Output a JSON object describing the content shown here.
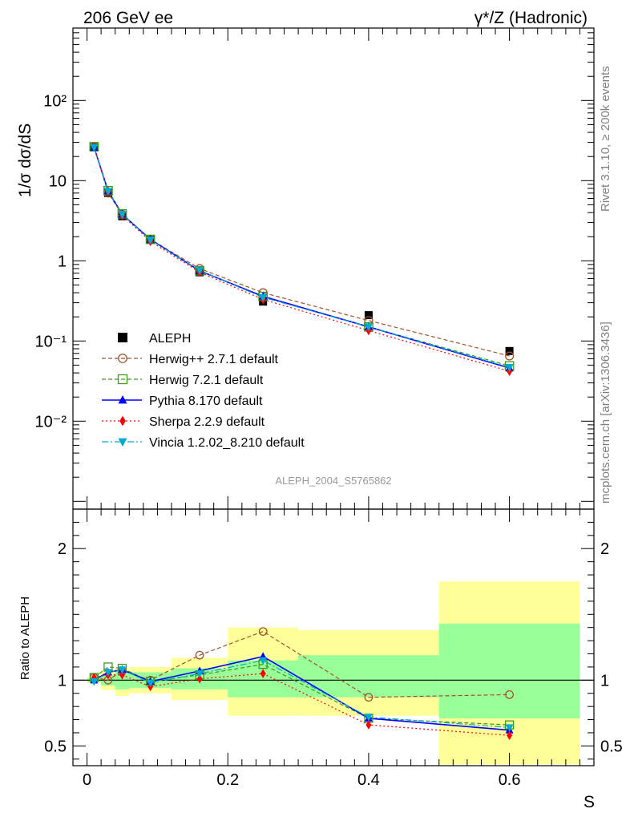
{
  "header": {
    "left": "206 GeV ee",
    "right": "γ*/Z (Hadronic)"
  },
  "side_text": {
    "rivet": "Rivet 3.1.10, ≥ 200k events",
    "mcplots": "mcplots.cern.ch [arXiv:1306.3436]"
  },
  "chart_data": [
    {
      "type": "line",
      "panel": "main",
      "yscale": "log",
      "ylabel": "1/σ  dσ/dS",
      "xlabel": "S",
      "xlim": [
        -0.02,
        0.72
      ],
      "ylim": [
        0.0008,
        800
      ],
      "ytick_labels": [
        "10⁻²",
        "10⁻¹",
        "1",
        "10",
        "10²"
      ],
      "ytick_values": [
        0.01,
        0.1,
        1,
        10,
        100
      ],
      "analysis_label": "ALEPH_2004_S5765862",
      "x": [
        0.01,
        0.03,
        0.05,
        0.09,
        0.16,
        0.25,
        0.4,
        0.6
      ],
      "data": {
        "name": "ALEPH",
        "values": [
          26.0,
          7.0,
          3.6,
          1.85,
          0.72,
          0.31,
          0.21,
          0.075
        ]
      },
      "series": [
        {
          "name": "Herwig++ 2.7.1 default",
          "color": "#a0522d",
          "marker": "circle-open",
          "dash": "5,3",
          "values": [
            26.5,
            7.0,
            3.8,
            1.85,
            0.8,
            0.4,
            0.18,
            0.065
          ]
        },
        {
          "name": "Herwig 7.2.1 default",
          "color": "#3c9a1e",
          "marker": "square-open",
          "dash": "5,3",
          "values": [
            26.5,
            7.5,
            3.85,
            1.85,
            0.75,
            0.36,
            0.15,
            0.049
          ]
        },
        {
          "name": "Pythia 8.170 default",
          "color": "#0000ff",
          "marker": "triangle-up",
          "dash": "",
          "values": [
            26.0,
            7.4,
            3.8,
            1.85,
            0.75,
            0.36,
            0.15,
            0.046
          ]
        },
        {
          "name": "Sherpa 2.2.9 default",
          "color": "#ff0000",
          "marker": "diamond",
          "dash": "2,3",
          "values": [
            26.5,
            7.3,
            3.7,
            1.75,
            0.72,
            0.33,
            0.135,
            0.042
          ]
        },
        {
          "name": "Vincia 1.2.02_8.210 default",
          "color": "#00aacc",
          "marker": "triangle-down",
          "dash": "8,3,2,3",
          "values": [
            26.0,
            7.4,
            3.8,
            1.82,
            0.76,
            0.35,
            0.15,
            0.047
          ]
        }
      ]
    },
    {
      "type": "line",
      "panel": "ratio",
      "ylabel": "Ratio to ALEPH",
      "xlabel": "S",
      "xlim": [
        -0.02,
        0.72
      ],
      "ylim": [
        0.35,
        2.3
      ],
      "ytick_labels": [
        "0.5",
        "1",
        "2"
      ],
      "ytick_values": [
        0.5,
        1,
        2
      ],
      "xtick_labels": [
        "0",
        "0.2",
        "0.4",
        "0.6"
      ],
      "xtick_values": [
        0,
        0.2,
        0.4,
        0.6
      ],
      "bands": [
        {
          "x0": 0.0,
          "x1": 0.02,
          "inner": [
            0.985,
            1.015
          ],
          "outer": [
            0.975,
            1.025
          ]
        },
        {
          "x0": 0.02,
          "x1": 0.04,
          "inner": [
            0.96,
            1.04
          ],
          "outer": [
            0.925,
            1.075
          ]
        },
        {
          "x0": 0.04,
          "x1": 0.06,
          "inner": [
            0.93,
            1.07
          ],
          "outer": [
            0.88,
            1.09
          ]
        },
        {
          "x0": 0.06,
          "x1": 0.12,
          "inner": [
            0.94,
            1.06
          ],
          "outer": [
            0.9,
            1.1
          ]
        },
        {
          "x0": 0.12,
          "x1": 0.2,
          "inner": [
            0.93,
            1.09
          ],
          "outer": [
            0.85,
            1.17
          ]
        },
        {
          "x0": 0.2,
          "x1": 0.3,
          "inner": [
            0.87,
            1.15
          ],
          "outer": [
            0.73,
            1.4
          ]
        },
        {
          "x0": 0.3,
          "x1": 0.5,
          "inner": [
            0.87,
            1.19
          ],
          "outer": [
            0.73,
            1.38
          ]
        },
        {
          "x0": 0.5,
          "x1": 0.7,
          "inner": [
            0.71,
            1.43
          ],
          "outer": [
            0.36,
            1.75
          ]
        }
      ],
      "x": [
        0.01,
        0.03,
        0.05,
        0.09,
        0.16,
        0.25,
        0.4,
        0.6
      ],
      "series": [
        {
          "name": "Herwig++ 2.7.1 default",
          "values": [
            1.02,
            1.0,
            1.07,
            1.0,
            1.19,
            1.37,
            0.87,
            0.89
          ]
        },
        {
          "name": "Herwig 7.2.1 default",
          "values": [
            1.02,
            1.1,
            1.09,
            0.99,
            1.04,
            1.12,
            0.71,
            0.66
          ]
        },
        {
          "name": "Pythia 8.170 default",
          "values": [
            1.0,
            1.06,
            1.08,
            0.99,
            1.07,
            1.18,
            0.71,
            0.62
          ]
        },
        {
          "name": "Sherpa 2.2.9 default",
          "values": [
            1.02,
            1.04,
            1.04,
            0.95,
            1.01,
            1.05,
            0.66,
            0.58
          ]
        },
        {
          "name": "Vincia 1.2.02_8.210 default",
          "values": [
            0.99,
            1.06,
            1.08,
            0.98,
            1.05,
            1.15,
            0.72,
            0.64
          ]
        }
      ]
    }
  ]
}
